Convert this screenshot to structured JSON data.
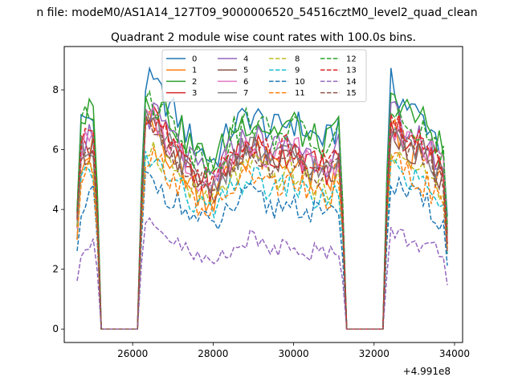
{
  "figure": {
    "suptitle": "n file: modeM0/AS1A14_127T09_9000006520_54516cztM0_level2_quad_clean",
    "offset_label": "+4.991e8"
  },
  "chart_data": {
    "type": "line",
    "title": "Quadrant 2 module wise count rates with 100.0s bins.",
    "xlabel": "",
    "ylabel": "",
    "x_offset": 499100000,
    "xlim": [
      24300,
      34200
    ],
    "ylim": [
      -0.45,
      9.45
    ],
    "xticks": [
      26000,
      28000,
      30000,
      32000,
      34000
    ],
    "xtick_labels": [
      "26000",
      "28000",
      "30000",
      "32000",
      "34000"
    ],
    "yticks": [
      0,
      2,
      4,
      6,
      8
    ],
    "ytick_labels": [
      "0",
      "2",
      "4",
      "6",
      "8"
    ],
    "grid": false,
    "legend": {
      "placement": "top-center",
      "ncol": 4
    },
    "segments": [
      {
        "x_start": 24620,
        "x_end": 25120
      },
      {
        "x_start": 26150,
        "x_end": 31220
      },
      {
        "x_start": 32300,
        "x_end": 33820
      }
    ],
    "series": [
      {
        "name": "0",
        "color": "#1f77b4",
        "dash": "solid",
        "level": 7.0,
        "spread": 0.55,
        "shape": [
          6.8,
          7.3,
          6.9,
          8.4,
          8.1,
          7.2,
          6.2,
          5.6,
          6.8,
          7.2,
          6.6,
          7.0,
          6.5,
          6.3,
          7.6,
          9.0,
          8.3,
          7.4,
          6.9,
          5.8
        ]
      },
      {
        "name": "1",
        "color": "#ff7f0e",
        "dash": "solid",
        "level": 5.6,
        "spread": 0.6,
        "shape": [
          5.6,
          6.1,
          5.4,
          7.0,
          6.7,
          5.6,
          4.8,
          4.3,
          5.5,
          5.9,
          5.4,
          5.6,
          5.1,
          4.9,
          6.0,
          7.3,
          6.8,
          6.0,
          5.5,
          4.6
        ]
      },
      {
        "name": "2",
        "color": "#2ca02c",
        "dash": "solid",
        "level": 6.8,
        "spread": 0.6,
        "shape": [
          6.9,
          7.4,
          6.9,
          8.0,
          7.7,
          6.9,
          6.0,
          5.5,
          6.7,
          7.1,
          6.6,
          6.9,
          6.3,
          6.2,
          7.5,
          8.8,
          8.1,
          7.3,
          6.8,
          5.7
        ]
      },
      {
        "name": "3",
        "color": "#d62728",
        "dash": "solid",
        "level": 6.0,
        "spread": 0.55,
        "shape": [
          6.0,
          6.5,
          6.0,
          7.3,
          7.0,
          6.0,
          5.2,
          4.7,
          5.8,
          6.2,
          5.7,
          6.0,
          5.5,
          5.3,
          6.4,
          7.6,
          7.0,
          6.3,
          5.9,
          4.9
        ]
      },
      {
        "name": "4",
        "color": "#9467bd",
        "dash": "solid",
        "level": 6.3,
        "spread": 0.55,
        "shape": [
          6.2,
          6.7,
          6.2,
          7.4,
          7.1,
          6.3,
          5.4,
          5.0,
          6.1,
          6.5,
          6.0,
          6.3,
          5.8,
          5.6,
          6.8,
          7.9,
          7.3,
          6.6,
          6.1,
          5.1
        ]
      },
      {
        "name": "5",
        "color": "#8c564b",
        "dash": "solid",
        "level": 5.7,
        "spread": 0.5,
        "shape": [
          5.8,
          6.2,
          5.7,
          6.9,
          6.6,
          5.8,
          5.0,
          4.6,
          5.6,
          6.0,
          5.5,
          5.8,
          5.3,
          5.1,
          6.2,
          7.3,
          6.8,
          6.1,
          5.6,
          4.7
        ]
      },
      {
        "name": "6",
        "color": "#e377c2",
        "dash": "solid",
        "level": 6.1,
        "spread": 0.55,
        "shape": [
          6.0,
          6.4,
          5.9,
          7.1,
          6.9,
          6.1,
          5.2,
          4.8,
          5.9,
          6.3,
          5.8,
          6.1,
          5.6,
          5.4,
          6.5,
          7.6,
          7.1,
          6.4,
          6.0,
          5.0
        ]
      },
      {
        "name": "7",
        "color": "#7f7f7f",
        "dash": "solid",
        "level": 5.9,
        "spread": 0.5,
        "shape": [
          5.9,
          6.3,
          5.8,
          7.0,
          6.7,
          5.9,
          5.1,
          4.7,
          5.7,
          6.1,
          5.6,
          5.9,
          5.4,
          5.2,
          6.3,
          7.4,
          6.9,
          6.2,
          5.8,
          4.8
        ]
      },
      {
        "name": "8",
        "color": "#bcbd22",
        "dash": "dashed",
        "level": 5.3,
        "spread": 0.5,
        "shape": [
          5.3,
          5.7,
          5.2,
          6.3,
          6.0,
          5.3,
          4.6,
          4.2,
          5.1,
          5.5,
          5.0,
          5.3,
          4.8,
          4.6,
          5.6,
          6.6,
          6.1,
          5.5,
          5.1,
          4.3
        ]
      },
      {
        "name": "9",
        "color": "#17becf",
        "dash": "dashed",
        "level": 4.9,
        "spread": 0.45,
        "shape": [
          4.8,
          5.2,
          4.8,
          5.9,
          5.6,
          4.9,
          4.2,
          3.9,
          4.7,
          5.1,
          4.6,
          4.9,
          4.4,
          4.3,
          5.2,
          6.1,
          5.7,
          5.1,
          4.7,
          3.9
        ]
      },
      {
        "name": "10",
        "color": "#1f77b4",
        "dash": "dashed",
        "level": 4.3,
        "spread": 0.45,
        "shape": [
          4.1,
          4.6,
          4.2,
          5.1,
          4.9,
          4.3,
          3.7,
          3.4,
          4.1,
          4.5,
          4.0,
          4.3,
          3.9,
          3.7,
          4.6,
          5.4,
          5.0,
          4.5,
          4.1,
          3.4
        ]
      },
      {
        "name": "11",
        "color": "#ff7f0e",
        "dash": "dashed",
        "level": 5.0,
        "spread": 0.5,
        "shape": [
          5.0,
          5.4,
          4.9,
          6.0,
          5.7,
          5.0,
          4.3,
          3.9,
          4.8,
          5.2,
          4.7,
          5.0,
          4.5,
          4.4,
          5.3,
          6.3,
          5.8,
          5.2,
          4.8,
          4.0
        ]
      },
      {
        "name": "12",
        "color": "#2ca02c",
        "dash": "dashed",
        "level": 6.9,
        "spread": 0.55,
        "shape": [
          6.8,
          7.2,
          6.7,
          8.0,
          7.6,
          6.8,
          5.9,
          5.4,
          6.6,
          7.0,
          6.5,
          6.8,
          6.2,
          6.0,
          7.3,
          8.2,
          7.8,
          7.0,
          6.5,
          5.5
        ]
      },
      {
        "name": "13",
        "color": "#d62728",
        "dash": "dashed",
        "level": 6.2,
        "spread": 0.5,
        "shape": [
          6.1,
          6.6,
          6.1,
          7.3,
          7.0,
          6.2,
          5.3,
          4.9,
          6.0,
          6.4,
          5.9,
          6.2,
          5.7,
          5.5,
          6.6,
          7.7,
          7.2,
          6.5,
          6.0,
          5.1
        ]
      },
      {
        "name": "14",
        "color": "#9467bd",
        "dash": "dashed",
        "level": 2.9,
        "spread": 0.35,
        "shape": [
          2.6,
          3.1,
          2.8,
          3.6,
          3.3,
          2.9,
          2.4,
          2.2,
          2.8,
          3.0,
          2.7,
          2.9,
          2.6,
          2.5,
          3.1,
          3.4,
          3.3,
          3.0,
          2.8,
          2.2
        ]
      },
      {
        "name": "15",
        "color": "#8c564b",
        "dash": "dashed",
        "level": 5.8,
        "spread": 0.5,
        "shape": [
          5.7,
          6.1,
          5.6,
          6.8,
          6.5,
          5.8,
          5.0,
          4.6,
          5.6,
          6.0,
          5.5,
          5.8,
          5.3,
          5.1,
          6.2,
          7.2,
          6.7,
          6.0,
          5.6,
          4.7
        ]
      }
    ]
  }
}
